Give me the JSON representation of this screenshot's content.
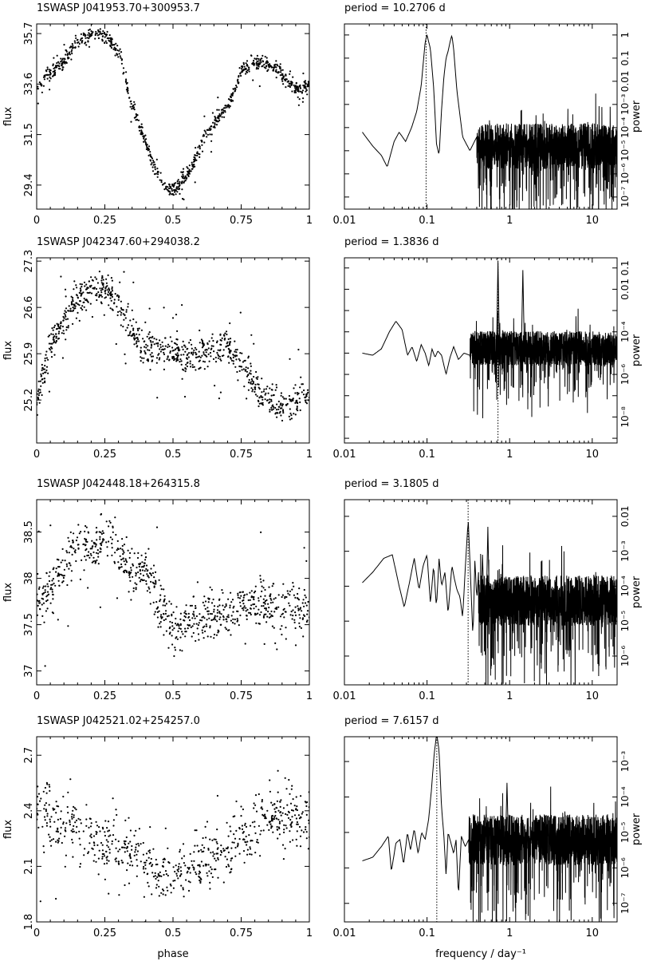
{
  "chart_data": [
    {
      "type": "scatter",
      "panel": "light-curve",
      "title": "1SWASP  J041953.70+300953.7",
      "xlabel": "",
      "ylabel": "flux",
      "xlim": [
        0,
        1
      ],
      "ylim": [
        28.4,
        36.1
      ],
      "xticks": [
        "0",
        "0.25",
        "0.5",
        "0.75",
        "1"
      ],
      "yticks": [
        29.4,
        31.5,
        33.6,
        35.7
      ],
      "ytick_labels": [
        "29.4",
        "31.5",
        "33.6",
        "35.7"
      ],
      "curve": {
        "phase": [
          0.0,
          0.05,
          0.1,
          0.14,
          0.18,
          0.22,
          0.26,
          0.31,
          0.34,
          0.4,
          0.43,
          0.47,
          0.5,
          0.52,
          0.56,
          0.6,
          0.65,
          0.7,
          0.75,
          0.8,
          0.86,
          0.9,
          0.95,
          1.0
        ],
        "flux": [
          33.5,
          34.0,
          34.5,
          35.3,
          35.6,
          35.7,
          35.5,
          34.8,
          33.0,
          31.2,
          30.2,
          29.4,
          29.2,
          29.3,
          30.0,
          31.0,
          32.0,
          32.6,
          34.1,
          34.5,
          34.4,
          34.0,
          33.4,
          33.5
        ]
      },
      "scatter": 0.35,
      "n_points": 850,
      "seed": 11
    },
    {
      "type": "line",
      "panel": "periodogram",
      "title": "period =   10.2706  d",
      "xlabel": "",
      "ylabel": "power",
      "xscale": "log",
      "yscale": "log",
      "xlim": [
        0.01,
        20
      ],
      "ylim": [
        3e-08,
        3
      ],
      "xticks": [
        "0.01",
        "0.1",
        "1",
        "10"
      ],
      "yticks": [
        1e-07,
        1e-06,
        1e-05,
        0.0001,
        0.001,
        0.01,
        0.1,
        1
      ],
      "ytick_labels": [
        "10⁻⁷",
        "10⁻⁶",
        "10⁻⁵",
        "10⁻⁴",
        "10⁻³",
        "0.01",
        "0.1",
        "1"
      ],
      "period_marker_freq": 0.0974,
      "smooth": {
        "freq": [
          0.0165,
          0.022,
          0.028,
          0.033,
          0.036,
          0.04,
          0.046,
          0.055,
          0.065,
          0.075,
          0.085,
          0.095,
          0.1,
          0.11,
          0.12,
          0.13,
          0.14,
          0.15,
          0.16,
          0.17,
          0.18,
          0.19,
          0.2,
          0.21,
          0.23,
          0.27,
          0.33,
          0.4
        ],
        "logp": [
          -4.2,
          -4.8,
          -5.2,
          -5.7,
          -5.2,
          -4.6,
          -4.2,
          -4.6,
          -4.0,
          -3.3,
          -2.2,
          -0.3,
          0.0,
          -0.6,
          -2.2,
          -4.7,
          -5.2,
          -3.2,
          -1.8,
          -1.0,
          -0.7,
          -0.3,
          0.0,
          -0.6,
          -2.4,
          -4.4,
          -5.0,
          -4.4
        ]
      },
      "noise": {
        "start": 0.4,
        "center_logp": -5.2,
        "spread": 2.2
      },
      "spikes": [],
      "seed": 21
    },
    {
      "type": "scatter",
      "panel": "light-curve",
      "title": "1SWASP  J042347.60+294038.2",
      "xlabel": "",
      "ylabel": "flux",
      "xlim": [
        0,
        1
      ],
      "ylim": [
        24.55,
        27.35
      ],
      "xticks": [
        "0",
        "0.25",
        "0.5",
        "0.75",
        "1"
      ],
      "yticks": [
        25.2,
        25.9,
        26.6,
        27.3
      ],
      "ytick_labels": [
        "25.2",
        "25.9",
        "26.6",
        "27.3"
      ],
      "curve": {
        "phase": [
          0.0,
          0.05,
          0.1,
          0.15,
          0.2,
          0.25,
          0.3,
          0.35,
          0.4,
          0.45,
          0.5,
          0.55,
          0.6,
          0.65,
          0.7,
          0.75,
          0.8,
          0.85,
          0.9,
          0.95,
          1.0
        ],
        "flux": [
          25.2,
          26.0,
          26.4,
          26.7,
          26.9,
          26.9,
          26.7,
          26.2,
          26.0,
          25.95,
          25.9,
          25.85,
          25.9,
          25.95,
          26.0,
          25.8,
          25.4,
          25.2,
          25.15,
          25.2,
          25.3
        ]
      },
      "scatter": 0.28,
      "n_points": 900,
      "seed": 12
    },
    {
      "type": "line",
      "panel": "periodogram",
      "title": "period =    1.3836  d",
      "xlabel": "",
      "ylabel": "power",
      "xscale": "log",
      "yscale": "log",
      "xlim": [
        0.01,
        20
      ],
      "ylim": [
        6e-10,
        0.3
      ],
      "xticks": [
        "0.01",
        "0.1",
        "1",
        "10"
      ],
      "yticks": [
        1e-08,
        1e-06,
        0.0001,
        0.01,
        0.1
      ],
      "ytick_labels": [
        "10⁻⁸",
        "10⁻⁶",
        "10⁻⁴",
        "0.01",
        "0.1"
      ],
      "period_marker_freq": 0.7227,
      "smooth": {
        "freq": [
          0.0165,
          0.022,
          0.028,
          0.035,
          0.042,
          0.05,
          0.058,
          0.066,
          0.075,
          0.085,
          0.095,
          0.105,
          0.115,
          0.125,
          0.135,
          0.15,
          0.17,
          0.19,
          0.21,
          0.24,
          0.28,
          0.33
        ],
        "logp": [
          -5.0,
          -5.1,
          -4.8,
          -4.0,
          -3.5,
          -3.9,
          -5.1,
          -4.7,
          -5.4,
          -4.6,
          -5.0,
          -5.6,
          -4.8,
          -5.2,
          -4.9,
          -5.1,
          -6.0,
          -5.2,
          -4.7,
          -5.3,
          -5.0,
          -5.1
        ]
      },
      "noise": {
        "start": 0.33,
        "center_logp": -5.1,
        "spread": 1.8
      },
      "spikes": [
        {
          "freq": 0.7227,
          "logp": -0.7
        },
        {
          "freq": 1.445,
          "logp": -1.1
        },
        {
          "freq": 0.46,
          "logp": -4.0
        }
      ],
      "seed": 22
    },
    {
      "type": "scatter",
      "panel": "light-curve",
      "title": "1SWASP  J042448.18+264315.8",
      "xlabel": "",
      "ylabel": "flux",
      "xlim": [
        0,
        1
      ],
      "ylim": [
        36.85,
        38.85
      ],
      "xticks": [
        "0",
        "0.25",
        "0.5",
        "0.75",
        "1"
      ],
      "yticks": [
        37,
        37.5,
        38,
        38.5
      ],
      "ytick_labels": [
        "37",
        "37.5",
        "38",
        "38.5"
      ],
      "curve": {
        "phase": [
          0.0,
          0.05,
          0.1,
          0.15,
          0.2,
          0.25,
          0.3,
          0.35,
          0.4,
          0.45,
          0.5,
          0.55,
          0.6,
          0.65,
          0.7,
          0.75,
          0.8,
          0.85,
          0.9,
          0.95,
          1.0
        ],
        "flux": [
          37.7,
          37.9,
          38.1,
          38.4,
          38.3,
          38.45,
          38.3,
          38.0,
          38.1,
          37.7,
          37.45,
          37.5,
          37.55,
          37.6,
          37.6,
          37.7,
          37.75,
          37.7,
          37.7,
          37.7,
          37.65
        ]
      },
      "scatter": 0.28,
      "n_points": 820,
      "seed": 13
    },
    {
      "type": "line",
      "panel": "periodogram",
      "title": "period =    3.1805  d",
      "xlabel": "",
      "ylabel": "power",
      "xscale": "log",
      "yscale": "log",
      "xlim": [
        0.01,
        20
      ],
      "ylim": [
        1.5e-07,
        0.03
      ],
      "xticks": [
        "0.01",
        "0.1",
        "1",
        "10"
      ],
      "yticks": [
        1e-06,
        1e-05,
        0.0001,
        0.001,
        0.01
      ],
      "ytick_labels": [
        "10⁻⁶",
        "10⁻⁵",
        "10⁻⁴",
        "10⁻³",
        "0.01"
      ],
      "period_marker_freq": 0.3144,
      "smooth": {
        "freq": [
          0.0165,
          0.022,
          0.03,
          0.038,
          0.046,
          0.053,
          0.06,
          0.07,
          0.08,
          0.09,
          0.1,
          0.11,
          0.12,
          0.13,
          0.14,
          0.15,
          0.165,
          0.18,
          0.2,
          0.215,
          0.23,
          0.25,
          0.27,
          0.29,
          0.315,
          0.34,
          0.36,
          0.38,
          0.4,
          0.42
        ],
        "logp": [
          -3.9,
          -3.6,
          -3.2,
          -3.1,
          -4.0,
          -4.6,
          -4.0,
          -3.2,
          -4.1,
          -3.4,
          -3.1,
          -4.5,
          -3.4,
          -4.6,
          -3.2,
          -4.0,
          -3.6,
          -4.8,
          -3.4,
          -3.8,
          -4.1,
          -4.3,
          -4.9,
          -3.5,
          -2.1,
          -4.0,
          -5.5,
          -3.2,
          -4.4,
          -3.6
        ]
      },
      "noise": {
        "start": 0.42,
        "center_logp": -4.7,
        "spread": 1.6
      },
      "spikes": [
        {
          "freq": 0.545,
          "logp": -2.3
        },
        {
          "freq": 0.47,
          "logp": -3.1
        }
      ],
      "seed": 23
    },
    {
      "type": "scatter",
      "panel": "light-curve",
      "title": "1SWASP  J042521.02+254257.0",
      "xlabel": "phase",
      "ylabel": "flux",
      "xlim": [
        0,
        1
      ],
      "ylim": [
        1.8,
        2.8
      ],
      "xticks": [
        "0",
        "0.25",
        "0.5",
        "0.75",
        "1"
      ],
      "yticks": [
        1.8,
        2.1,
        2.4,
        2.7
      ],
      "ytick_labels": [
        "1.8",
        "2.1",
        "2.4",
        "2.7"
      ],
      "curve": {
        "phase": [
          0.0,
          0.05,
          0.1,
          0.15,
          0.2,
          0.25,
          0.3,
          0.35,
          0.4,
          0.45,
          0.5,
          0.55,
          0.6,
          0.65,
          0.7,
          0.75,
          0.8,
          0.85,
          0.9,
          0.95,
          1.0
        ],
        "flux": [
          2.4,
          2.38,
          2.3,
          2.28,
          2.25,
          2.22,
          2.2,
          2.18,
          2.12,
          2.05,
          2.05,
          2.07,
          2.1,
          2.15,
          2.2,
          2.25,
          2.3,
          2.38,
          2.4,
          2.35,
          2.4
        ]
      },
      "scatter": 0.18,
      "n_points": 700,
      "seed": 14
    },
    {
      "type": "line",
      "panel": "periodogram",
      "title": "period =    7.6157  d",
      "xlabel": "frequency  /  day⁻¹",
      "ylabel": "power",
      "xscale": "log",
      "yscale": "log",
      "xlim": [
        0.01,
        20
      ],
      "ylim": [
        3e-08,
        0.005
      ],
      "xticks": [
        "0.01",
        "0.1",
        "1",
        "10"
      ],
      "yticks": [
        1e-07,
        1e-06,
        1e-05,
        0.0001,
        0.001
      ],
      "ytick_labels": [
        "10⁻⁷",
        "10⁻⁶",
        "10⁻⁵",
        "10⁻⁴",
        "10⁻³"
      ],
      "period_marker_freq": 0.1313,
      "smooth": {
        "freq": [
          0.0165,
          0.022,
          0.028,
          0.034,
          0.037,
          0.042,
          0.047,
          0.052,
          0.058,
          0.063,
          0.07,
          0.078,
          0.086,
          0.095,
          0.105,
          0.113,
          0.122,
          0.131,
          0.14,
          0.15,
          0.16,
          0.17,
          0.18,
          0.195,
          0.21,
          0.225,
          0.24,
          0.26,
          0.29,
          0.32
        ],
        "logp": [
          -5.8,
          -5.7,
          -5.4,
          -5.1,
          -6.1,
          -5.3,
          -5.2,
          -5.9,
          -5.0,
          -5.5,
          -4.9,
          -5.6,
          -5.0,
          -5.2,
          -4.6,
          -3.8,
          -2.8,
          -2.2,
          -2.7,
          -4.3,
          -5.1,
          -6.2,
          -5.0,
          -5.3,
          -5.6,
          -5.2,
          -6.8,
          -5.1,
          -5.4,
          -5.2
        ]
      },
      "noise": {
        "start": 0.32,
        "center_logp": -5.5,
        "spread": 1.6
      },
      "spikes": [
        {
          "freq": 0.93,
          "logp": -3.6
        }
      ],
      "seed": 24
    }
  ]
}
